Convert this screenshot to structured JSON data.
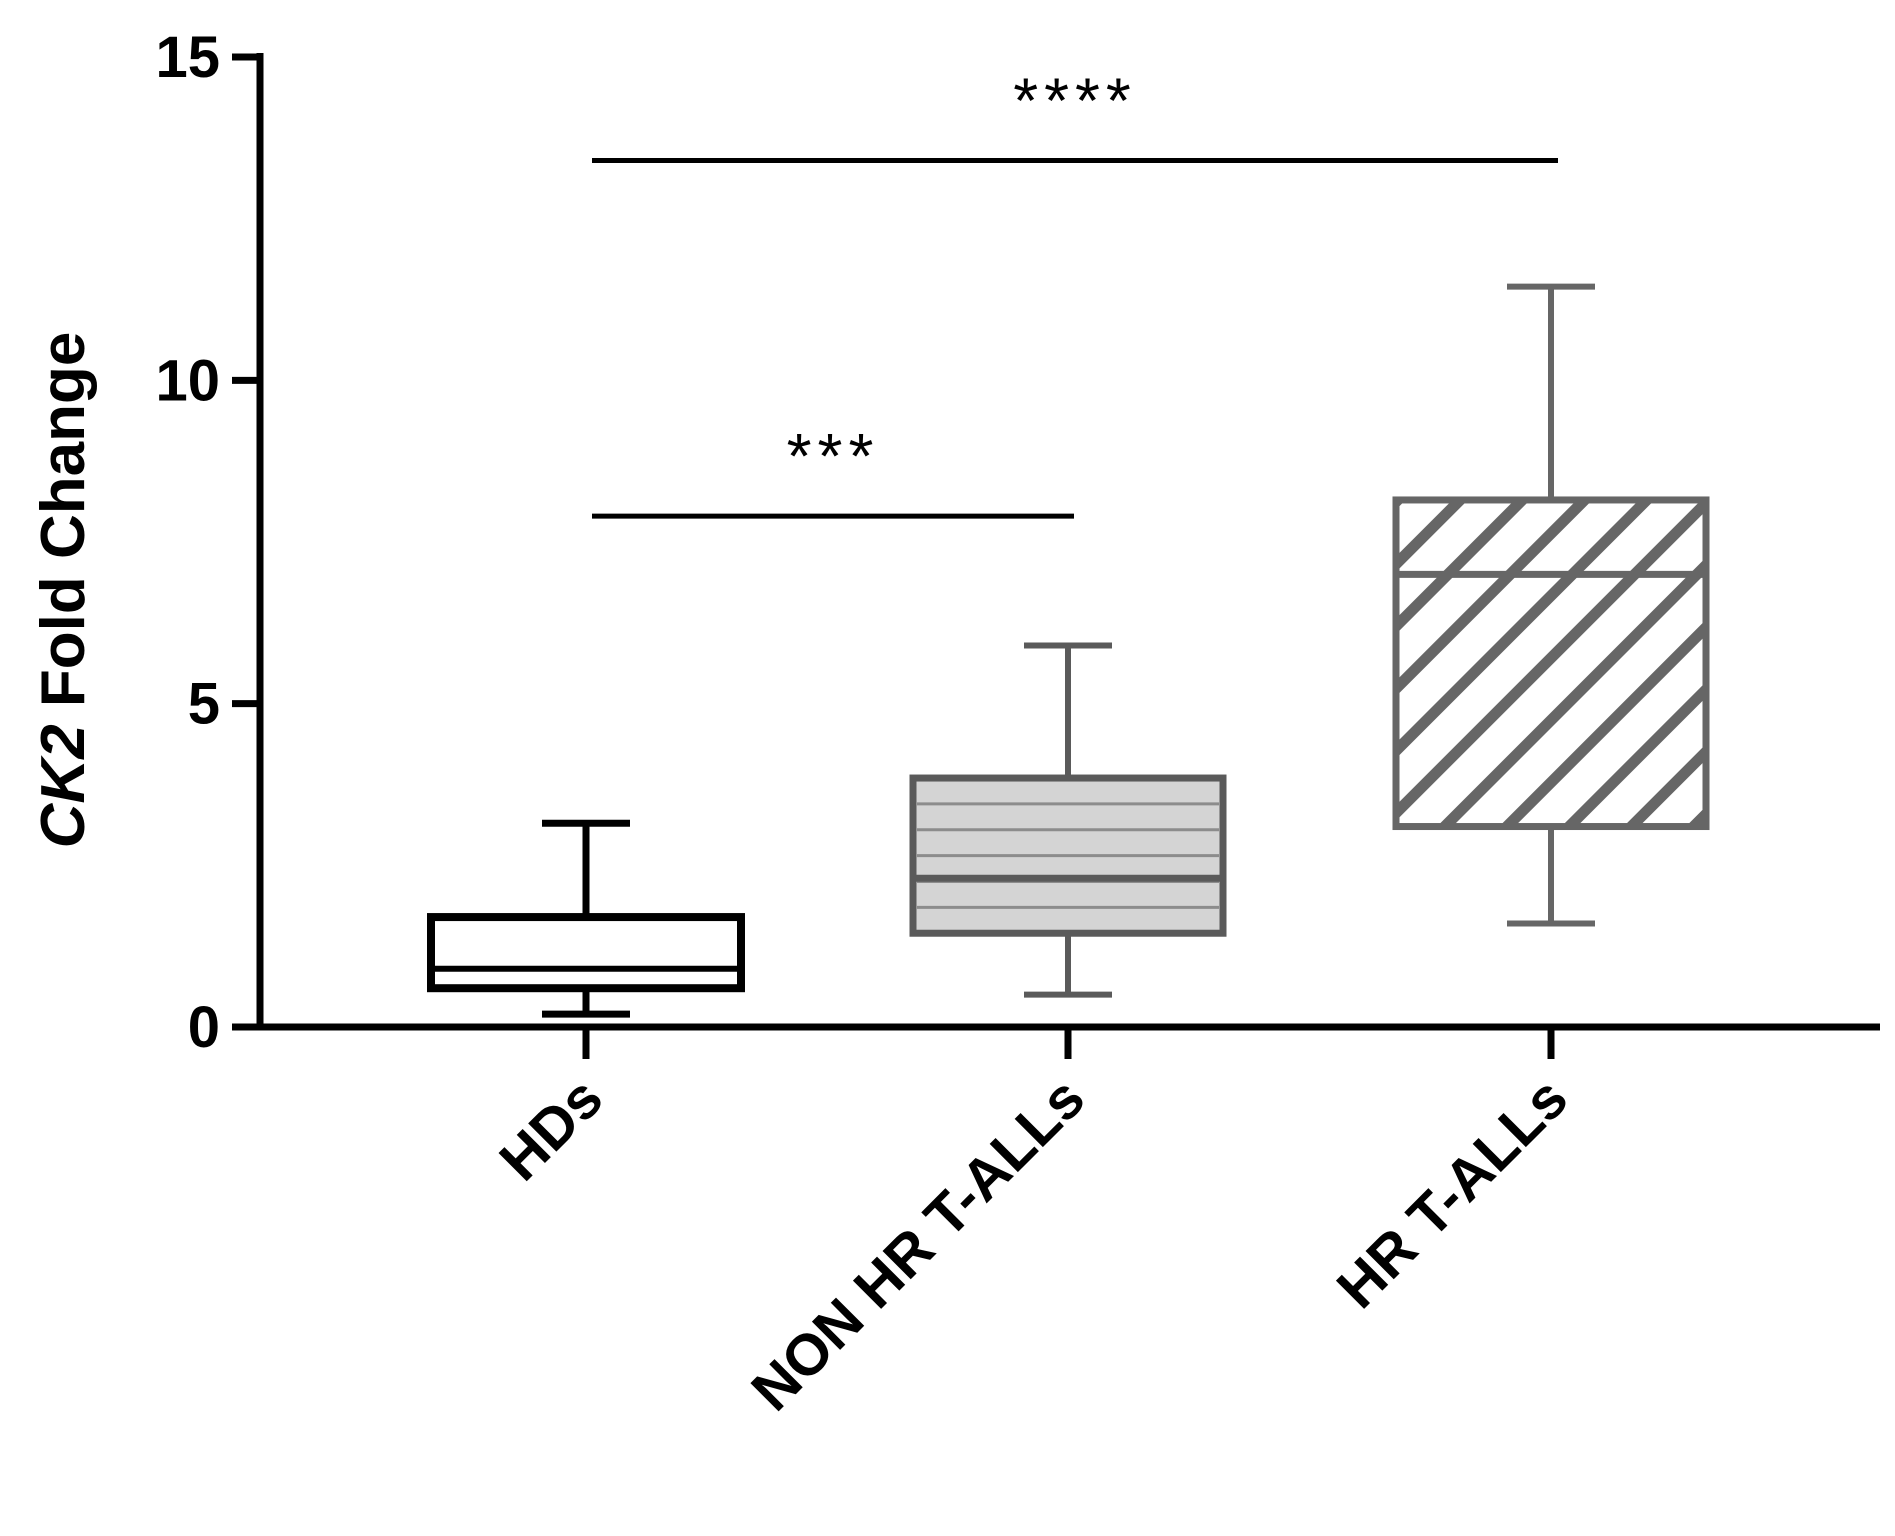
{
  "chart_data": {
    "type": "box",
    "ylabel_italic": "CK2",
    "ylabel_rest": " Fold Change",
    "ylim": [
      0,
      15
    ],
    "yticks": [
      0,
      5,
      10,
      15
    ],
    "grid": false,
    "categories": [
      "HDs",
      "NON HR T-ALLs",
      "HR T-ALLs"
    ],
    "boxes": [
      {
        "category": "HDs",
        "whisker_low": 0.2,
        "q1": 0.6,
        "median": 0.9,
        "q3": 1.7,
        "whisker_high": 3.15,
        "fill": "white"
      },
      {
        "category": "NON HR T-ALLs",
        "whisker_low": 0.5,
        "q1": 1.45,
        "median": 2.3,
        "q3": 3.85,
        "whisker_high": 5.9,
        "fill": "light-gray-horizontal-lines"
      },
      {
        "category": "HR T-ALLs",
        "whisker_low": 1.6,
        "q1": 3.1,
        "median": 7.0,
        "q3": 8.15,
        "whisker_high": 11.45,
        "fill": "diagonal-hatch"
      }
    ],
    "significance": [
      {
        "from": "HDs",
        "to": "NON HR T-ALLs",
        "y": 7.9,
        "label": "***"
      },
      {
        "from": "HDs",
        "to": "HR T-ALLs",
        "y": 13.4,
        "label": "****"
      }
    ],
    "colors": {
      "axis": "#000000",
      "box1": "#000000",
      "box2": "#5a5a5a",
      "box3": "#666666",
      "box2_fill": "#d4d4d4"
    }
  }
}
